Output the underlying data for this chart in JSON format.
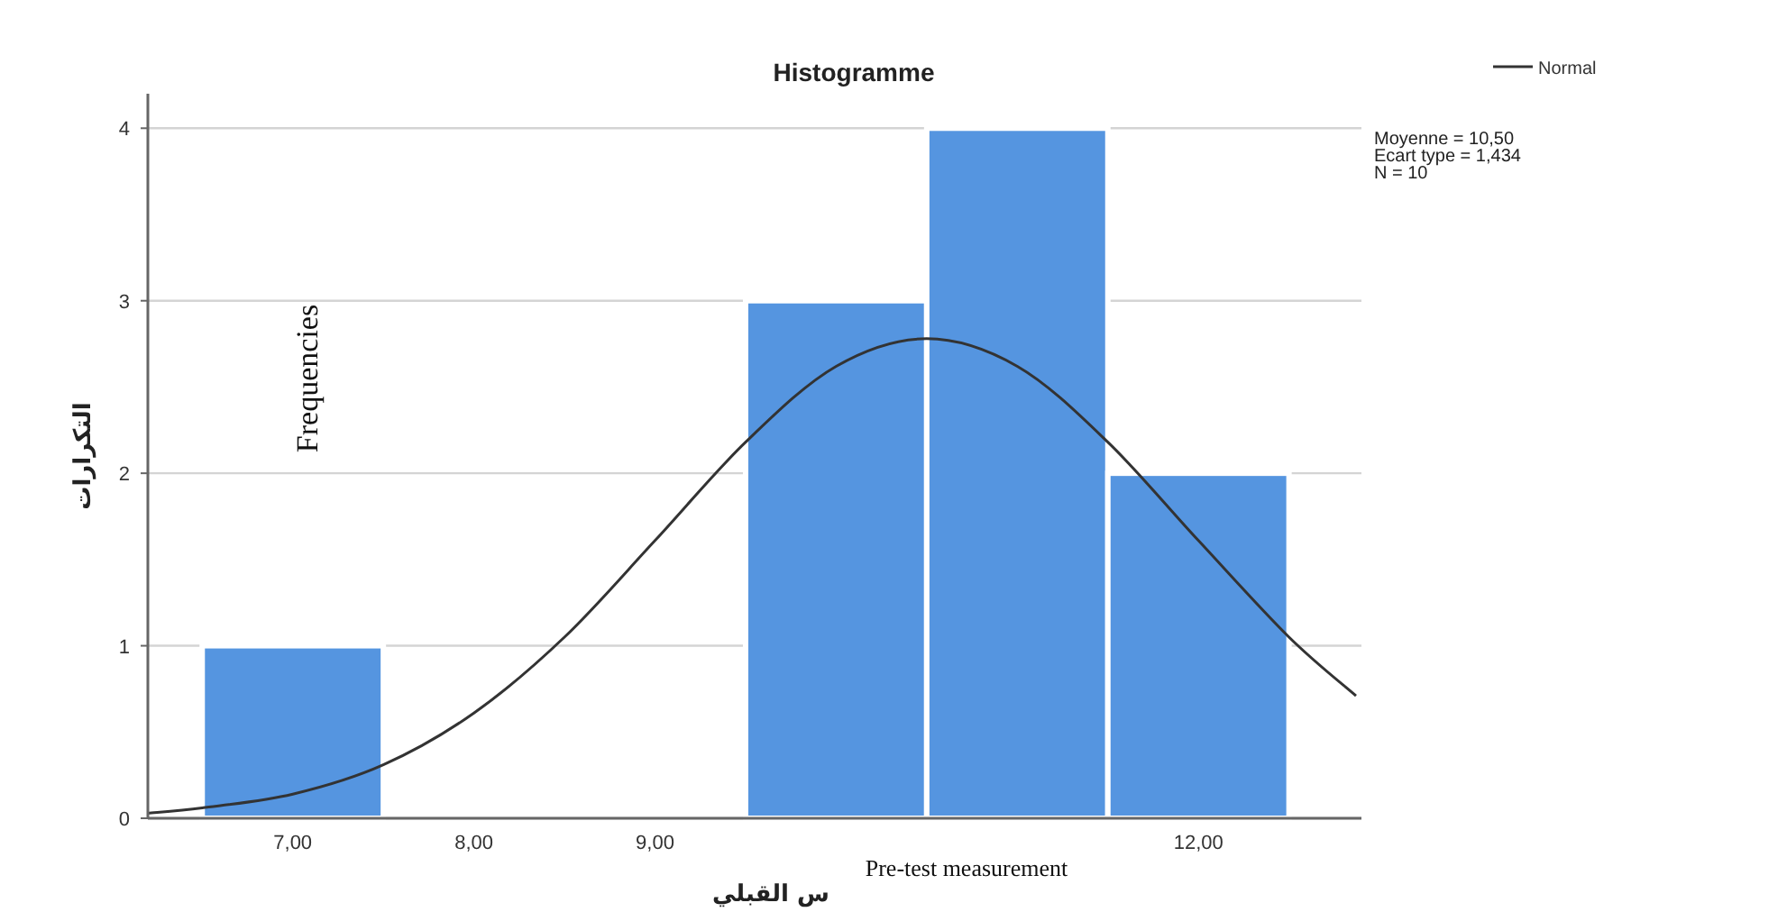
{
  "chart_data": {
    "type": "histogram",
    "title": "Histogramme",
    "xlabel": "س القبلي",
    "ylabel": "التكرارات",
    "bins": [
      6.5,
      7.5,
      8.5,
      9.5,
      10.5,
      11.5,
      12.5
    ],
    "values": [
      1,
      0,
      0,
      3,
      4,
      2
    ],
    "color": "#5595e0",
    "series": [
      {
        "name": "Normal",
        "type": "line",
        "color": "#333333",
        "x": [
          6.2,
          6.5,
          7,
          7.5,
          8,
          8.5,
          9,
          9.5,
          10,
          10.5,
          11,
          11.5,
          12,
          12.5,
          12.87
        ],
        "values": [
          0.03,
          0.06,
          0.14,
          0.31,
          0.61,
          1.05,
          1.61,
          2.18,
          2.62,
          2.78,
          2.62,
          2.18,
          1.61,
          1.05,
          0.71
        ]
      }
    ],
    "xlim": [
      6.2,
      12.9
    ],
    "xticks": [
      {
        "value": 7,
        "label": "7,00"
      },
      {
        "value": 8,
        "label": "8,00"
      },
      {
        "value": 9,
        "label": "9,00"
      },
      {
        "value": 12,
        "label": "12,00"
      }
    ],
    "ylim": [
      0,
      4.2
    ],
    "yticks": [
      0,
      1,
      2,
      3,
      4
    ],
    "grid": "y",
    "legend": "top right",
    "marker": "none",
    "annotations": [
      "Moyenne = 10,50\nEcart type = 1,434\nN = 10",
      "Frequencies",
      "Pre-test measurement"
    ]
  }
}
